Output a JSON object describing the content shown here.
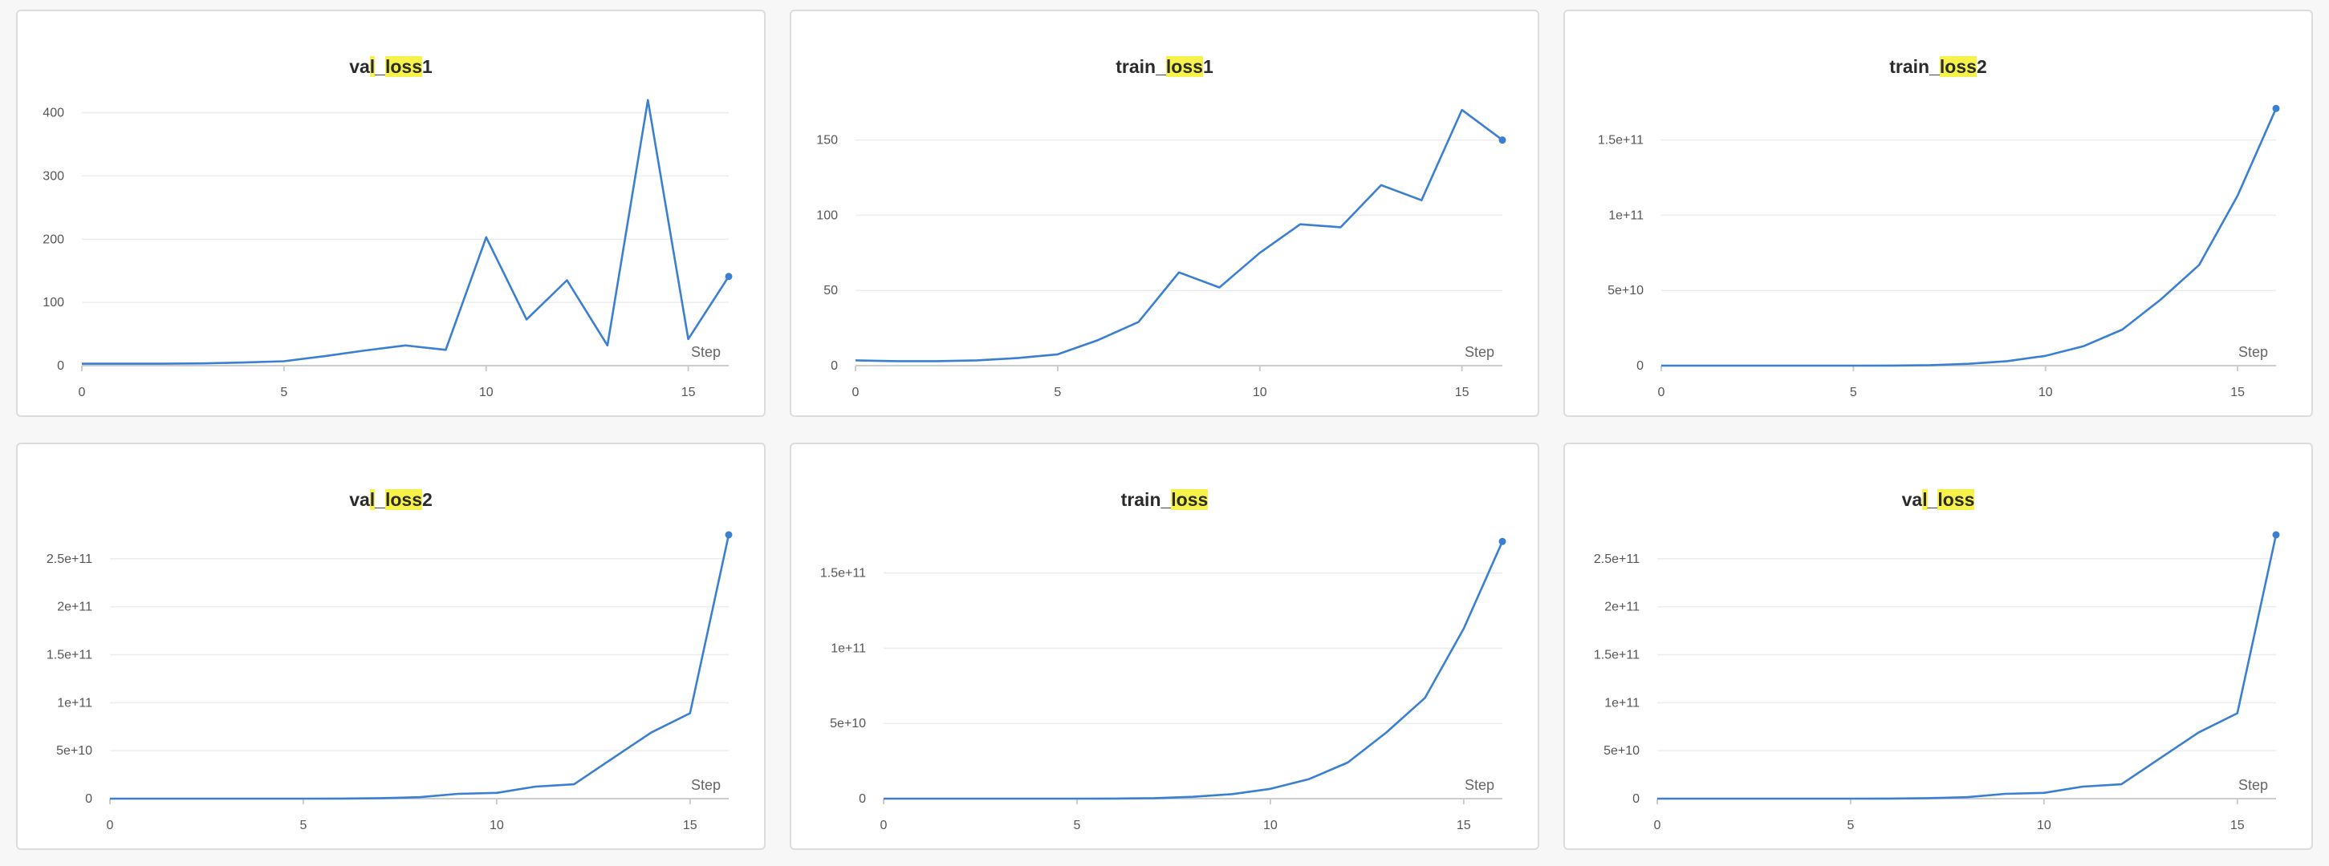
{
  "colors": {
    "line": "#3a7fd1",
    "highlight": "#f7f24a"
  },
  "chart_data": [
    {
      "type": "line",
      "title": "val_loss1",
      "title_parts": [
        {
          "text": "va",
          "hl": false
        },
        {
          "text": "l",
          "hl": true
        },
        {
          "text": "_",
          "hl": false
        },
        {
          "text": "loss",
          "hl": true
        },
        {
          "text": "1",
          "hl": false
        }
      ],
      "xlabel": "Step",
      "x": [
        0,
        1,
        2,
        3,
        4,
        5,
        6,
        7,
        8,
        9,
        10,
        11,
        12,
        13,
        14,
        15,
        16
      ],
      "series": [
        {
          "values": [
            3,
            3,
            3,
            3.5,
            5,
            7,
            15,
            24,
            32,
            25,
            203,
            73,
            135,
            32,
            420,
            42,
            141
          ]
        }
      ],
      "xlim": [
        0,
        16
      ],
      "ylim": [
        0,
        440
      ],
      "yticks": [
        0,
        100,
        200,
        300,
        400
      ],
      "ytick_labels": [
        "0",
        "100",
        "200",
        "300",
        "400"
      ],
      "xticks": [
        0,
        5,
        10,
        15
      ],
      "xtick_labels": [
        "0",
        "5",
        "10",
        "15"
      ]
    },
    {
      "type": "line",
      "title": "train_loss1",
      "title_parts": [
        {
          "text": "train_",
          "hl": false
        },
        {
          "text": "loss",
          "hl": true
        },
        {
          "text": "1",
          "hl": false
        }
      ],
      "xlabel": "Step",
      "x": [
        0,
        1,
        2,
        3,
        4,
        5,
        6,
        7,
        8,
        9,
        10,
        11,
        12,
        13,
        14,
        15,
        16
      ],
      "series": [
        {
          "values": [
            3.5,
            3,
            3,
            3.5,
            5,
            7.5,
            17,
            29,
            62,
            52,
            75,
            94,
            92,
            120,
            110,
            170,
            150
          ]
        }
      ],
      "xlim": [
        0,
        16
      ],
      "ylim": [
        0,
        185
      ],
      "yticks": [
        0,
        50,
        100,
        150
      ],
      "ytick_labels": [
        "0",
        "50",
        "100",
        "150"
      ],
      "xticks": [
        0,
        5,
        10,
        15
      ],
      "xtick_labels": [
        "0",
        "5",
        "10",
        "15"
      ]
    },
    {
      "type": "line",
      "title": "train_loss2",
      "title_parts": [
        {
          "text": "train_",
          "hl": false
        },
        {
          "text": "loss",
          "hl": true
        },
        {
          "text": "2",
          "hl": false
        }
      ],
      "xlabel": "Step",
      "x": [
        0,
        1,
        2,
        3,
        4,
        5,
        6,
        7,
        8,
        9,
        10,
        11,
        12,
        13,
        14,
        15,
        16
      ],
      "series": [
        {
          "values": [
            0,
            0,
            0,
            0,
            0,
            0,
            50000000,
            300000000,
            1200000000,
            3000000000,
            6500000000,
            13000000000,
            24000000000,
            44000000000,
            67000000000,
            113000000000,
            171000000000
          ]
        }
      ],
      "xlim": [
        0,
        16
      ],
      "ylim": [
        0,
        185000000000
      ],
      "yticks": [
        0,
        50000000000,
        100000000000,
        150000000000
      ],
      "ytick_labels": [
        "0",
        "5e+10",
        "1e+11",
        "1.5e+11"
      ],
      "xticks": [
        0,
        5,
        10,
        15
      ],
      "xtick_labels": [
        "0",
        "5",
        "10",
        "15"
      ]
    },
    {
      "type": "line",
      "title": "val_loss2",
      "title_parts": [
        {
          "text": "va",
          "hl": false
        },
        {
          "text": "l",
          "hl": true
        },
        {
          "text": "_",
          "hl": false
        },
        {
          "text": "loss",
          "hl": true
        },
        {
          "text": "2",
          "hl": false
        }
      ],
      "xlabel": "Step",
      "x": [
        0,
        1,
        2,
        3,
        4,
        5,
        6,
        7,
        8,
        9,
        10,
        11,
        12,
        13,
        14,
        15,
        16
      ],
      "series": [
        {
          "values": [
            0,
            0,
            0,
            0,
            0,
            0,
            100000000,
            500000000,
            1500000000,
            5000000000,
            6000000000,
            12500000000,
            15000000000,
            42000000000,
            69000000000,
            89000000000,
            275000000000
          ]
        }
      ],
      "xlim": [
        0,
        16
      ],
      "ylim": [
        0,
        290000000000
      ],
      "yticks": [
        0,
        50000000000,
        100000000000,
        150000000000,
        200000000000,
        250000000000
      ],
      "ytick_labels": [
        "0",
        "5e+10",
        "1e+11",
        "1.5e+11",
        "2e+11",
        "2.5e+11"
      ],
      "xticks": [
        0,
        5,
        10,
        15
      ],
      "xtick_labels": [
        "0",
        "5",
        "10",
        "15"
      ]
    },
    {
      "type": "line",
      "title": "train_loss",
      "title_parts": [
        {
          "text": "train_",
          "hl": false
        },
        {
          "text": "loss",
          "hl": true
        }
      ],
      "xlabel": "Step",
      "x": [
        0,
        1,
        2,
        3,
        4,
        5,
        6,
        7,
        8,
        9,
        10,
        11,
        12,
        13,
        14,
        15,
        16
      ],
      "series": [
        {
          "values": [
            0,
            0,
            0,
            0,
            0,
            0,
            50000000,
            300000000,
            1200000000,
            3000000000,
            6500000000,
            13000000000,
            24000000000,
            44000000000,
            67000000000,
            113000000000,
            171000000000
          ]
        }
      ],
      "xlim": [
        0,
        16
      ],
      "ylim": [
        0,
        185000000000
      ],
      "yticks": [
        0,
        50000000000,
        100000000000,
        150000000000
      ],
      "ytick_labels": [
        "0",
        "5e+10",
        "1e+11",
        "1.5e+11"
      ],
      "xticks": [
        0,
        5,
        10,
        15
      ],
      "xtick_labels": [
        "0",
        "5",
        "10",
        "15"
      ]
    },
    {
      "type": "line",
      "title": "val_loss",
      "title_parts": [
        {
          "text": "va",
          "hl": false
        },
        {
          "text": "l",
          "hl": true
        },
        {
          "text": "_",
          "hl": false
        },
        {
          "text": "loss",
          "hl": true
        }
      ],
      "xlabel": "Step",
      "x": [
        0,
        1,
        2,
        3,
        4,
        5,
        6,
        7,
        8,
        9,
        10,
        11,
        12,
        13,
        14,
        15,
        16
      ],
      "series": [
        {
          "values": [
            0,
            0,
            0,
            0,
            0,
            0,
            100000000,
            500000000,
            1500000000,
            5000000000,
            6000000000,
            12500000000,
            15000000000,
            42000000000,
            69000000000,
            89000000000,
            275000000000
          ]
        }
      ],
      "xlim": [
        0,
        16
      ],
      "ylim": [
        0,
        290000000000
      ],
      "yticks": [
        0,
        50000000000,
        100000000000,
        150000000000,
        200000000000,
        250000000000
      ],
      "ytick_labels": [
        "0",
        "5e+10",
        "1e+11",
        "1.5e+11",
        "2e+11",
        "2.5e+11"
      ],
      "xticks": [
        0,
        5,
        10,
        15
      ],
      "xtick_labels": [
        "0",
        "5",
        "10",
        "15"
      ]
    }
  ]
}
